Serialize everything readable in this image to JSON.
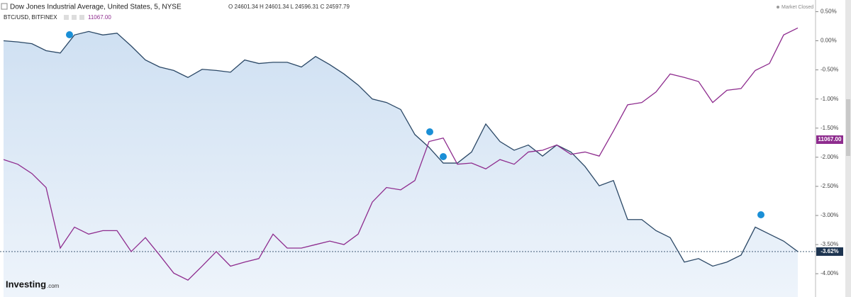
{
  "chart_data": {
    "type": "line",
    "header": {
      "ohlc": "O 24601.34 H 24601.34 L 24596.31 C 24597.79",
      "btc_price": "11067.00",
      "status": "Market Closed",
      "btc_tag": "11067.00",
      "logo": "Investing",
      "logo_suffix": ".com"
    },
    "categories": [
      null,
      null,
      null,
      null,
      null,
      null,
      null,
      null,
      null,
      null,
      null,
      null,
      null,
      null,
      null,
      null,
      null,
      null,
      null,
      null,
      null,
      null,
      null,
      null,
      null,
      null,
      null,
      null,
      null,
      null,
      null,
      null,
      null,
      null,
      null,
      null,
      null,
      null,
      null,
      null,
      null,
      null,
      null,
      null,
      null,
      null,
      null,
      null,
      null,
      null,
      null,
      null,
      null,
      null,
      null,
      null,
      null
    ],
    "series": [
      {
        "name": "Dow Jones Industrial Average, United States, 5, NYSE",
        "color": "#2b4866",
        "area": true,
        "values": [
          0.0,
          -0.02,
          -0.05,
          -0.17,
          -0.21,
          0.1,
          0.16,
          0.1,
          0.13,
          -0.09,
          -0.33,
          -0.45,
          -0.51,
          -0.63,
          -0.49,
          -0.51,
          -0.54,
          -0.33,
          -0.39,
          -0.37,
          -0.37,
          -0.45,
          -0.27,
          -0.41,
          -0.57,
          -0.76,
          -1.0,
          -1.06,
          -1.18,
          -1.61,
          -1.83,
          -2.1,
          -2.1,
          -1.91,
          -1.43,
          -1.73,
          -1.88,
          -1.79,
          -1.98,
          -1.79,
          -1.91,
          -2.16,
          -2.49,
          -2.4,
          -3.07,
          -3.07,
          -3.26,
          -3.38,
          -3.8,
          -3.74,
          -3.87,
          -3.8,
          -3.68,
          -3.2,
          -3.32,
          -3.44,
          -3.62
        ],
        "last_label": "-3.62%"
      },
      {
        "name": "BTC/USD, BITFINEX",
        "color": "#8e2c8e",
        "area": false,
        "values": [
          -2.04,
          -2.12,
          -2.28,
          -2.52,
          -3.56,
          -3.2,
          -3.32,
          -3.26,
          -3.26,
          -3.62,
          -3.38,
          -3.68,
          -3.99,
          -4.11,
          -3.87,
          -3.62,
          -3.87,
          -3.8,
          -3.74,
          -3.32,
          -3.56,
          -3.56,
          -3.5,
          -3.44,
          -3.5,
          -3.32,
          -2.77,
          -2.52,
          -2.56,
          -2.4,
          -1.73,
          -1.67,
          -2.12,
          -2.1,
          -2.2,
          -2.04,
          -2.12,
          -1.91,
          -1.88,
          -1.79,
          -1.95,
          -1.91,
          -1.98,
          -1.55,
          -1.1,
          -1.06,
          -0.88,
          -0.57,
          -0.63,
          -0.7,
          -1.06,
          -0.85,
          -0.82,
          -0.51,
          -0.39,
          0.1,
          0.22
        ]
      }
    ],
    "ylim": [
      -4.4,
      0.7
    ],
    "yticks": [
      {
        "value": 0.5,
        "label": "0.50%"
      },
      {
        "value": 0,
        "label": "0.00%"
      },
      {
        "value": -0.5,
        "label": "-0.50%"
      },
      {
        "value": -1,
        "label": "-1.00%"
      },
      {
        "value": -1.5,
        "label": "-1.50%"
      },
      {
        "value": -2,
        "label": "-2.00%"
      },
      {
        "value": -2.5,
        "label": "-2.50%"
      },
      {
        "value": -3,
        "label": "-3.00%"
      },
      {
        "value": -3.5,
        "label": "-3.50%"
      },
      {
        "value": -4,
        "label": "-4.00%"
      }
    ]
  }
}
